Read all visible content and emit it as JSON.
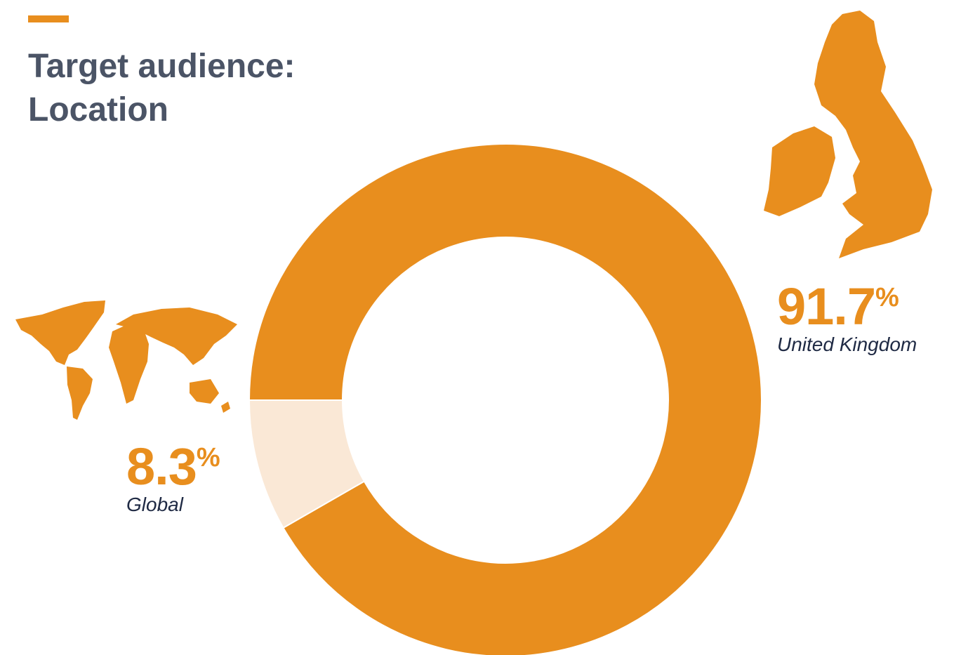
{
  "chart_data": {
    "type": "donut",
    "title": "Target audience: Location",
    "categories": [
      "United Kingdom",
      "Global"
    ],
    "values": [
      91.7,
      8.3
    ],
    "value_labels": [
      "91.7%",
      "8.3%"
    ],
    "colors": [
      "#e88e1e",
      "#fae8d6"
    ]
  }
}
